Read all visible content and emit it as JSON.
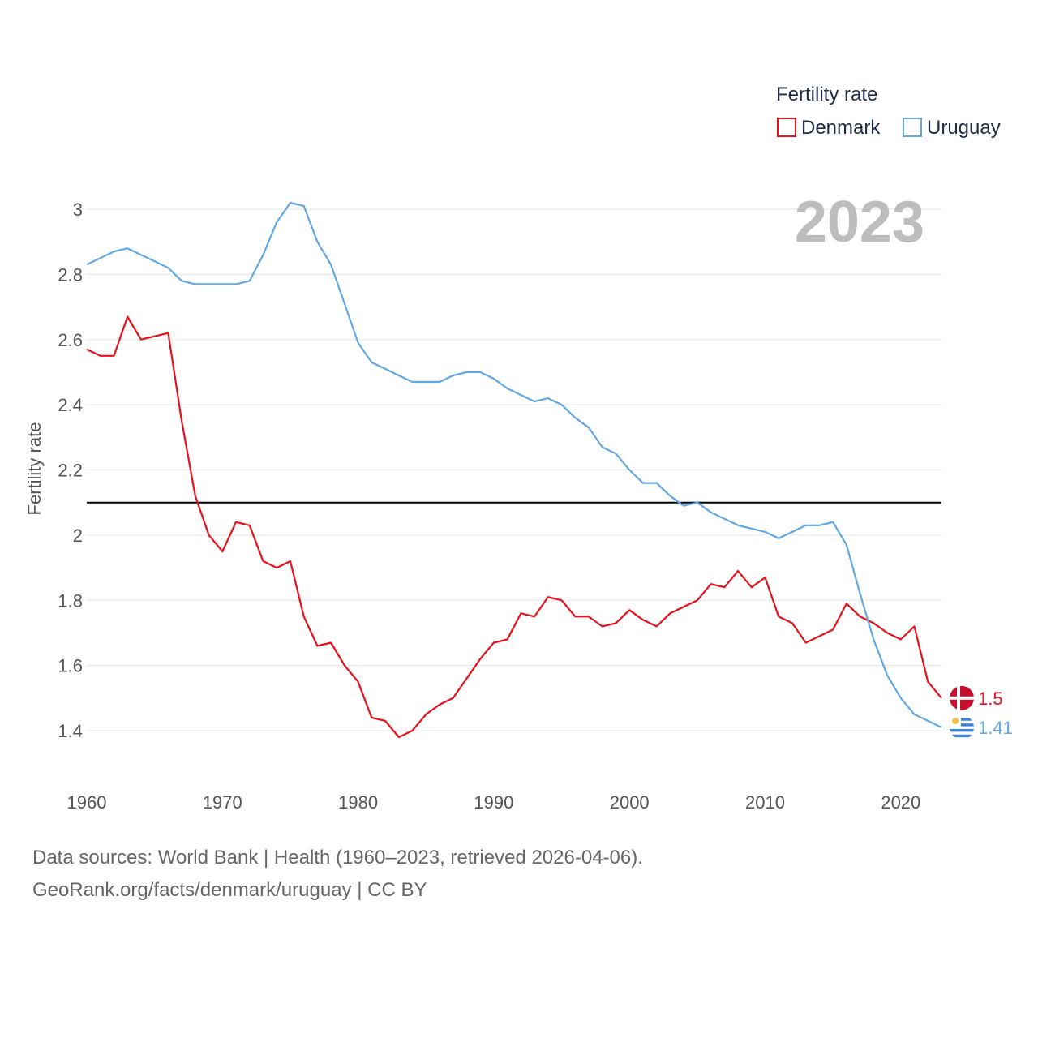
{
  "chart_data": {
    "type": "line",
    "title": "",
    "legend_title": "Fertility rate",
    "legend_position": "top-right",
    "xlabel": "",
    "ylabel": "Fertility rate",
    "year_label": "2023",
    "xlim": [
      1960,
      2023
    ],
    "ylim": [
      1.25,
      3.05
    ],
    "xticks": [
      1960,
      1970,
      1980,
      1990,
      2000,
      2010,
      2020
    ],
    "yticks": [
      1.4,
      1.6,
      1.8,
      2,
      2.2,
      2.4,
      2.6,
      2.8,
      3
    ],
    "ytick_labels": [
      "1.4",
      "1.6",
      "1.8",
      "2",
      "2.2",
      "2.4",
      "2.6",
      "2.8",
      "3"
    ],
    "xtick_labels": [
      "1960",
      "1970",
      "1980",
      "1990",
      "2000",
      "2010",
      "2020"
    ],
    "reference_line": {
      "y": 2.1,
      "color": "#000000"
    },
    "x": [
      1960,
      1961,
      1962,
      1963,
      1964,
      1965,
      1966,
      1967,
      1968,
      1969,
      1970,
      1971,
      1972,
      1973,
      1974,
      1975,
      1976,
      1977,
      1978,
      1979,
      1980,
      1981,
      1982,
      1983,
      1984,
      1985,
      1986,
      1987,
      1988,
      1989,
      1990,
      1991,
      1992,
      1993,
      1994,
      1995,
      1996,
      1997,
      1998,
      1999,
      2000,
      2001,
      2002,
      2003,
      2004,
      2005,
      2006,
      2007,
      2008,
      2009,
      2010,
      2011,
      2012,
      2013,
      2014,
      2015,
      2016,
      2017,
      2018,
      2019,
      2020,
      2021,
      2022,
      2023
    ],
    "series": [
      {
        "name": "Denmark",
        "color": "#e8101a",
        "end_label": "1.5",
        "values": [
          2.57,
          2.55,
          2.55,
          2.67,
          2.6,
          2.61,
          2.62,
          2.35,
          2.12,
          2.0,
          1.95,
          2.04,
          2.03,
          1.92,
          1.9,
          1.92,
          1.75,
          1.66,
          1.67,
          1.6,
          1.55,
          1.44,
          1.43,
          1.38,
          1.4,
          1.45,
          1.48,
          1.5,
          1.56,
          1.62,
          1.67,
          1.68,
          1.76,
          1.75,
          1.81,
          1.8,
          1.75,
          1.75,
          1.72,
          1.73,
          1.77,
          1.74,
          1.72,
          1.76,
          1.78,
          1.8,
          1.85,
          1.84,
          1.89,
          1.84,
          1.87,
          1.75,
          1.73,
          1.67,
          1.69,
          1.71,
          1.79,
          1.75,
          1.73,
          1.7,
          1.68,
          1.72,
          1.55,
          1.5
        ]
      },
      {
        "name": "Uruguay",
        "color": "#62a8e5",
        "end_label": "1.41",
        "values": [
          2.83,
          2.85,
          2.87,
          2.88,
          2.86,
          2.84,
          2.82,
          2.78,
          2.77,
          2.77,
          2.77,
          2.77,
          2.78,
          2.86,
          2.96,
          3.02,
          3.01,
          2.9,
          2.83,
          2.71,
          2.59,
          2.53,
          2.51,
          2.49,
          2.47,
          2.47,
          2.47,
          2.49,
          2.5,
          2.5,
          2.48,
          2.45,
          2.43,
          2.41,
          2.42,
          2.4,
          2.36,
          2.33,
          2.27,
          2.25,
          2.2,
          2.16,
          2.16,
          2.12,
          2.09,
          2.1,
          2.07,
          2.05,
          2.03,
          2.02,
          2.01,
          1.99,
          2.01,
          2.03,
          2.03,
          2.04,
          1.97,
          1.82,
          1.68,
          1.57,
          1.5,
          1.45,
          1.43,
          1.41
        ]
      }
    ]
  },
  "footer": {
    "line1": "Data sources: World Bank | Health (1960–2023, retrieved 2026-04-06).",
    "line2": "GeoRank.org/facts/denmark/uruguay | CC BY"
  },
  "colors": {
    "grid": "#e6e6e6",
    "denmark_flag": "#c8102e",
    "uruguay_flag_stripe": "#3b83d8",
    "uruguay_sun": "#f6c24a"
  }
}
